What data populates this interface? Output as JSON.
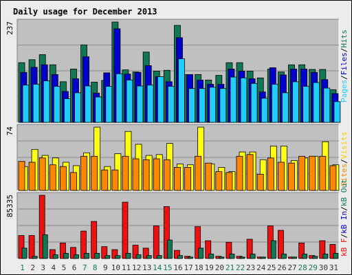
{
  "title": "Daily usage for December 2013",
  "colors": {
    "pages": "#22ccff",
    "files": "#0000cc",
    "hits": "#117755",
    "visits": "#ffff11",
    "sites": "#ff8800",
    "kb_in": "#117755",
    "kb_out": "#117755",
    "kb_f": "#ee1111",
    "weekend": "#117755",
    "weekday": "#333333",
    "title": "#0000cc",
    "panel": "#c0c0c0"
  },
  "legends": {
    "top": [
      {
        "text": "Pages",
        "color": "#22ccff"
      },
      {
        "text": "/",
        "color": "#000000"
      },
      {
        "text": "Files",
        "color": "#0000cc"
      },
      {
        "text": "/",
        "color": "#000000"
      },
      {
        "text": "Hits",
        "color": "#117755"
      }
    ],
    "mid": [
      {
        "text": "Sites",
        "color": "#ff8800"
      },
      {
        "text": "/",
        "color": "#000000"
      },
      {
        "text": "Visits",
        "color": "#ffcc00"
      }
    ],
    "bot": [
      {
        "text": "kB F",
        "color": "#ee1111"
      },
      {
        "text": "/",
        "color": "#000000"
      },
      {
        "text": "kB In",
        "color": "#0000cc"
      },
      {
        "text": "/",
        "color": "#000000"
      },
      {
        "text": "kB Out",
        "color": "#117755"
      }
    ]
  },
  "chart_data": {
    "type": "bar",
    "title": "Daily usage for December 2013",
    "categories": [
      "1",
      "2",
      "3",
      "4",
      "5",
      "6",
      "7",
      "8",
      "9",
      "10",
      "11",
      "12",
      "13",
      "14",
      "15",
      "16",
      "17",
      "18",
      "19",
      "20",
      "21",
      "22",
      "23",
      "24",
      "25",
      "26",
      "27",
      "28",
      "29",
      "30",
      "31"
    ],
    "weekend_days": [
      "1",
      "7",
      "8",
      "14",
      "15",
      "21",
      "22",
      "28",
      "29"
    ],
    "panels": [
      {
        "id": "top",
        "ymax_label": "237",
        "ymax": 237,
        "gridlines": 3,
        "series": [
          {
            "name": "Hits",
            "values": [
              141,
              148,
              160,
              136,
              96,
              126,
              183,
              95,
              99,
              237,
              124,
              119,
              166,
              121,
              123,
              229,
              113,
              113,
              100,
              111,
              141,
              141,
              121,
              105,
              126,
              119,
              136,
              136,
              125,
              125,
              77
            ]
          },
          {
            "name": "Files",
            "values": [
              118,
              130,
              136,
              113,
              73,
              103,
              155,
              69,
              117,
              221,
              114,
              118,
              134,
              108,
              96,
              200,
              113,
              100,
              90,
              90,
              126,
              121,
              103,
              72,
              129,
              112,
              126,
              126,
              118,
              101,
              68
            ]
          },
          {
            "name": "Pages",
            "values": [
              88,
              90,
              98,
              85,
              56,
              70,
              86,
              60,
              85,
              115,
              100,
              86,
              88,
              108,
              85,
              150,
              80,
              80,
              83,
              80,
              107,
              105,
              92,
              57,
              90,
              70,
              96,
              85,
              94,
              81,
              49
            ]
          }
        ]
      },
      {
        "id": "mid",
        "ymax_label": "74",
        "ymax": 74,
        "gridlines": 3,
        "series": [
          {
            "name": "Visits",
            "values": [
              28,
              48,
              41,
              38,
              33,
              29,
              44,
              74,
              28,
              43,
              69,
              54,
              41,
              42,
              55,
              31,
              30,
              74,
              31,
              27,
              22,
              45,
              45,
              36,
              52,
              52,
              35,
              38,
              40,
              57,
              30
            ]
          },
          {
            "name": "Sites",
            "values": [
              34,
              33,
              38,
              30,
              28,
              21,
              40,
              40,
              24,
              24,
              40,
              37,
              36,
              37,
              36,
              27,
              27,
              40,
              32,
              22,
              21,
              40,
              42,
              19,
              38,
              33,
              32,
              40,
              40,
              40,
              29
            ]
          }
        ]
      },
      {
        "id": "bot",
        "ymax_label": "85335",
        "ymax": 85335,
        "gridlines": 3,
        "series": [
          {
            "name": "kB F",
            "values": [
              31000,
              31000,
              85335,
              12000,
              21000,
              15000,
              37000,
              50000,
              16000,
              12000,
              76000,
              18000,
              14000,
              44000,
              70000,
              11000,
              3000,
              43000,
              24000,
              3000,
              22000,
              3000,
              26000,
              2000,
              44000,
              38000,
              2000,
              21000,
              4000,
              24000,
              19000
            ]
          },
          {
            "name": "kB In",
            "values": [
              0,
              0,
              0,
              0,
              0,
              0,
              0,
              0,
              0,
              0,
              0,
              0,
              0,
              0,
              0,
              0,
              0,
              0,
              0,
              0,
              0,
              0,
              0,
              0,
              0,
              0,
              0,
              0,
              0,
              0,
              0
            ]
          },
          {
            "name": "kB Out",
            "values": [
              14000,
              3000,
              32000,
              5000,
              7000,
              5000,
              7000,
              7000,
              4000,
              4000,
              7000,
              5000,
              4000,
              4000,
              25000,
              4000,
              2000,
              14000,
              6000,
              2000,
              6000,
              2000,
              6000,
              2000,
              24000,
              6000,
              2000,
              6000,
              3000,
              6000,
              7000
            ]
          }
        ]
      }
    ]
  }
}
